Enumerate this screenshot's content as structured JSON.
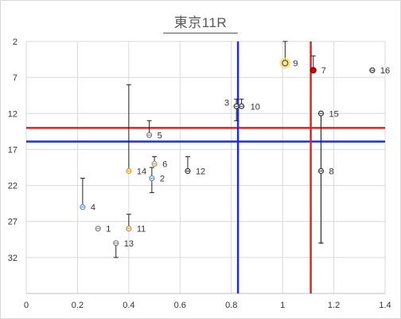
{
  "chart_data": {
    "type": "scatter",
    "title": "東京11R",
    "xlim": [
      0,
      1.4
    ],
    "ylim": [
      2,
      37
    ],
    "y_reversed": true,
    "x_ticks": [
      "0",
      "0.2",
      "0.4",
      "0.6",
      "0.8",
      "1",
      "1.2",
      "1.4"
    ],
    "x_tick_values": [
      0,
      0.2,
      0.4,
      0.6,
      0.8,
      1.0,
      1.2,
      1.4
    ],
    "y_ticks": [
      "2",
      "7",
      "12",
      "17",
      "22",
      "27",
      "32"
    ],
    "y_tick_values": [
      2,
      7,
      12,
      17,
      22,
      27,
      32
    ],
    "grid": true,
    "points": [
      {
        "label": "1",
        "x": 0.28,
        "y": 28,
        "err": null,
        "color": "#7a7a7a"
      },
      {
        "label": "2",
        "x": 0.49,
        "y": 21,
        "err": [
          19.5,
          23
        ],
        "color": "#5b8fd4"
      },
      {
        "label": "3",
        "x": 0.82,
        "y": 11,
        "err": [
          10,
          13
        ],
        "color": "#333333"
      },
      {
        "label": "4",
        "x": 0.22,
        "y": 25,
        "err": [
          21,
          25
        ],
        "color": "#5b8fd4"
      },
      {
        "label": "5",
        "x": 0.48,
        "y": 15,
        "err": [
          13,
          15
        ],
        "color": "#7a7a7a"
      },
      {
        "label": "6",
        "x": 0.5,
        "y": 19,
        "err": [
          18,
          19
        ],
        "color": "#c58a4a"
      },
      {
        "label": "7",
        "x": 1.12,
        "y": 6,
        "err": [
          4,
          6
        ],
        "color": "#cc0000"
      },
      {
        "label": "8",
        "x": 1.15,
        "y": 20,
        "err": [
          12,
          30
        ],
        "color": "#333333"
      },
      {
        "label": "9",
        "x": 1.01,
        "y": 5,
        "err": [
          2,
          5
        ],
        "color": "#e0a000",
        "highlight": true
      },
      {
        "label": "10",
        "x": 0.84,
        "y": 11,
        "err": [
          10,
          11
        ],
        "color": "#333333"
      },
      {
        "label": "11",
        "x": 0.4,
        "y": 28,
        "err": [
          26,
          28
        ],
        "color": "#c58a4a"
      },
      {
        "label": "12",
        "x": 0.63,
        "y": 20,
        "err": [
          18,
          20
        ],
        "color": "#333333"
      },
      {
        "label": "13",
        "x": 0.35,
        "y": 30,
        "err": [
          30,
          32
        ],
        "color": "#7a7a7a"
      },
      {
        "label": "14",
        "x": 0.4,
        "y": 20,
        "err": [
          8,
          20
        ],
        "color": "#e0a000"
      },
      {
        "label": "15",
        "x": 1.15,
        "y": 12,
        "err": [
          12,
          30
        ],
        "color": "#333333"
      },
      {
        "label": "16",
        "x": 1.35,
        "y": 6,
        "err": null,
        "color": "#333333"
      }
    ],
    "reference_lines": [
      {
        "orientation": "horizontal",
        "value": 14.0,
        "color": "#e82020"
      },
      {
        "orientation": "horizontal",
        "value": 15.9,
        "color": "#1f2be0"
      },
      {
        "orientation": "vertical",
        "value": 0.826,
        "color": "#1f2be0"
      },
      {
        "orientation": "vertical",
        "value": 1.11,
        "color": "#e82020"
      }
    ]
  }
}
